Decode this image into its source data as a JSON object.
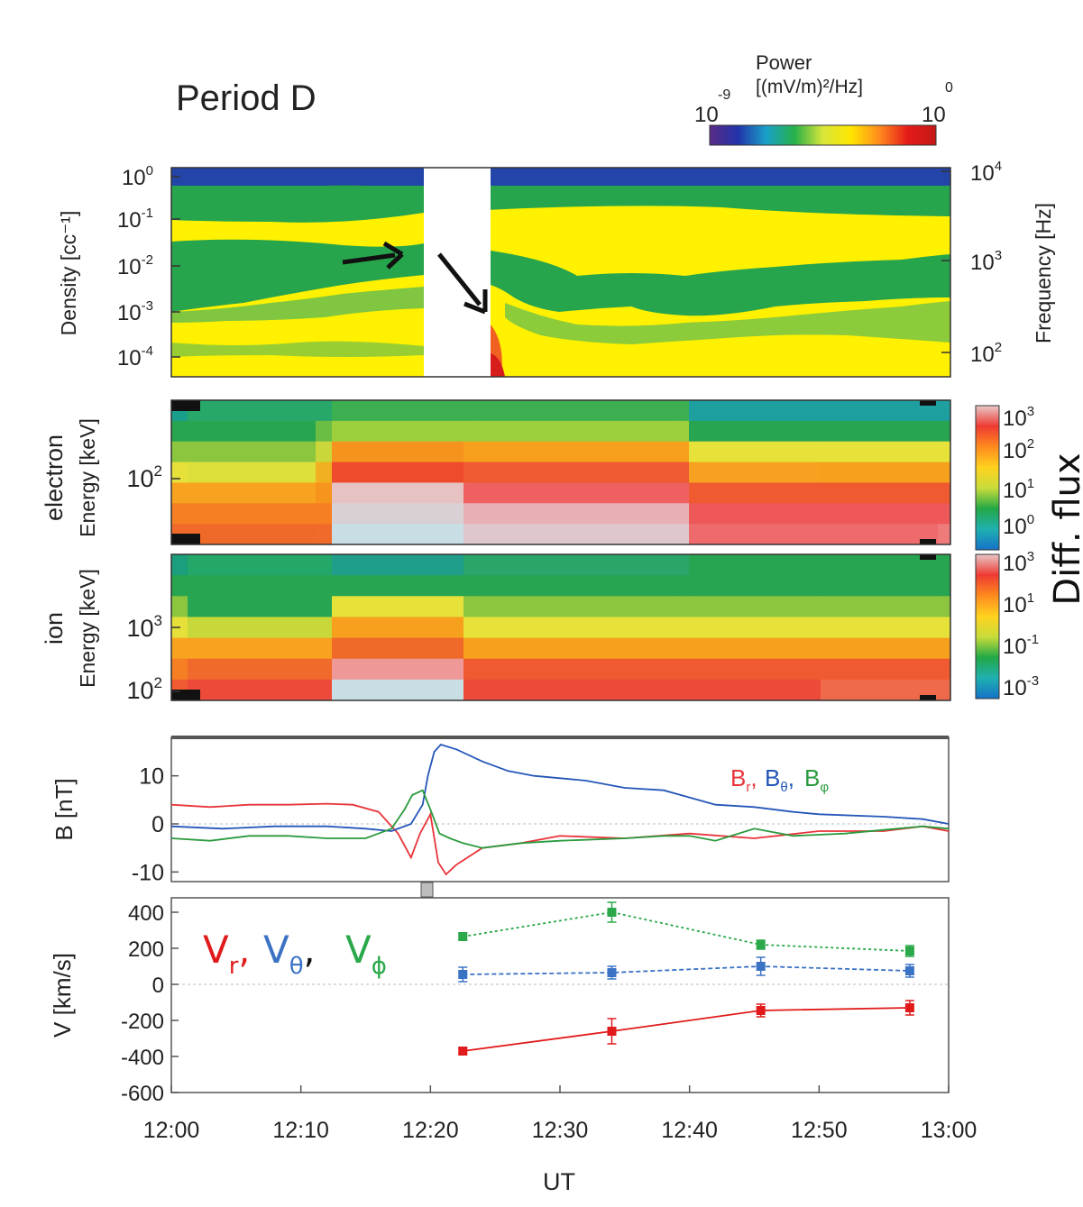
{
  "header": {
    "title": "Period D"
  },
  "power_colorbar": {
    "label_line1": "Power",
    "label_line2": "[(mV/m)²/Hz]",
    "min_base": "10",
    "min_exp": "-9",
    "max_base": "10",
    "max_exp": "0",
    "stops": [
      "#5a2a86",
      "#2233aa",
      "#1aa0c8",
      "#27b04a",
      "#d8e63a",
      "#ffe600",
      "#ff8a1e",
      "#e51a1a",
      "#c41818"
    ]
  },
  "flux_colorbars": {
    "label": "Diff. flux",
    "electron_ticks": [
      {
        "b": "10",
        "e": "3"
      },
      {
        "b": "10",
        "e": "2"
      },
      {
        "b": "10",
        "e": "1"
      },
      {
        "b": "10",
        "e": "0"
      }
    ],
    "ion_ticks": [
      {
        "b": "10",
        "e": "3"
      },
      {
        "b": "10",
        "e": "1"
      },
      {
        "b": "10",
        "e": "-1"
      },
      {
        "b": "10",
        "e": "-3"
      }
    ],
    "stops": [
      "#1672c8",
      "#1fb0b0",
      "#23a846",
      "#c8dc3a",
      "#ffd21e",
      "#ff8a1e",
      "#ee3a32",
      "#e8c8c8"
    ]
  },
  "panels": {
    "wave": {
      "left_label": "Density [cc⁻¹]",
      "left_ticks": [
        {
          "b": "10",
          "e": "0"
        },
        {
          "b": "10",
          "e": "-1"
        },
        {
          "b": "10",
          "e": "-2"
        },
        {
          "b": "10",
          "e": "-3"
        },
        {
          "b": "10",
          "e": "-4"
        }
      ],
      "right_label": "Frequency [Hz]",
      "right_ticks": [
        {
          "b": "10",
          "e": "4"
        },
        {
          "b": "10",
          "e": "3"
        },
        {
          "b": "10",
          "e": "2"
        }
      ]
    },
    "electron": {
      "label_line1": "electron",
      "label_line2": "Energy [keV]",
      "ticks": [
        {
          "b": "10",
          "e": "2"
        }
      ]
    },
    "ion": {
      "label_line1": "ion",
      "label_line2": "Energy [keV]",
      "ticks": [
        {
          "b": "10",
          "e": "3"
        },
        {
          "b": "10",
          "e": "2"
        }
      ]
    }
  },
  "chart_data": [
    {
      "type": "heatmap",
      "name": "wave power spectrogram",
      "x_range": [
        "12:00",
        "13:00"
      ],
      "y_scale": "log",
      "data_gap": [
        "12:19",
        "12:24"
      ]
    },
    {
      "type": "heatmap",
      "name": "electron differential flux",
      "x_range": [
        "12:00",
        "13:00"
      ],
      "flux_enhancement_start": "12:11",
      "flux_enhancement_end": "12:39"
    },
    {
      "type": "heatmap",
      "name": "ion differential flux",
      "x_range": [
        "12:00",
        "13:00"
      ],
      "flux_enhancement_start": "12:11",
      "flux_enhancement_end": "12:22"
    },
    {
      "type": "line",
      "ylabel": "B [nT]",
      "ylim": [
        -12,
        18
      ],
      "yticks": [
        {
          "v": 10,
          "label": "10"
        },
        {
          "v": 0,
          "label": "0"
        },
        {
          "v": -10,
          "label": "-10"
        }
      ],
      "x_range": [
        0,
        60
      ],
      "series": [
        {
          "name": "Br",
          "base": "B",
          "sub": "r",
          "color": "#e8343a",
          "x": [
            0,
            3,
            6,
            9,
            12,
            14,
            16,
            17.5,
            18.5,
            19.2,
            20,
            20.6,
            21.2,
            22,
            24,
            27,
            30,
            35,
            40,
            45,
            50,
            55,
            58,
            60
          ],
          "y": [
            4,
            3.5,
            4,
            4,
            4.2,
            4,
            2.5,
            -2,
            -7,
            -2,
            2,
            -8,
            -10.5,
            -8.5,
            -5,
            -4,
            -2.5,
            -3,
            -2,
            -3,
            -1.5,
            -1.5,
            -0.5,
            -1.5
          ]
        },
        {
          "name": "Bθ",
          "base": "B",
          "sub": "θ",
          "color": "#2456b8",
          "x": [
            0,
            4,
            8,
            12,
            15,
            17,
            18.5,
            19.4,
            19.8,
            20.3,
            20.8,
            22,
            24,
            26,
            28,
            30,
            32,
            35,
            38,
            40,
            42,
            45,
            48,
            50,
            55,
            58,
            60
          ],
          "y": [
            -0.5,
            -1,
            -0.5,
            -0.5,
            -1,
            -1.5,
            0,
            4,
            10,
            15,
            16.5,
            15.5,
            13,
            11,
            10,
            9.5,
            9,
            7.5,
            7,
            5.5,
            4,
            3.5,
            2.5,
            2,
            1.5,
            1,
            0
          ]
        },
        {
          "name": "Bφ",
          "base": "B",
          "sub": "φ",
          "color": "#2a9a3e",
          "x": [
            0,
            3,
            6,
            9,
            12,
            15,
            17,
            18,
            18.6,
            19.4,
            20,
            20.7,
            21.5,
            22.5,
            24,
            27,
            30,
            35,
            38,
            40,
            42,
            45,
            48,
            52,
            56,
            58,
            60
          ],
          "y": [
            -3,
            -3.5,
            -2.5,
            -2.5,
            -3,
            -3,
            -1,
            3,
            6,
            7,
            3,
            -2,
            -3,
            -4,
            -5,
            -4,
            -3.5,
            -3,
            -2.5,
            -2.5,
            -3.5,
            -1,
            -2.5,
            -2,
            -1,
            -0.5,
            -1
          ]
        }
      ]
    },
    {
      "type": "line",
      "ylabel": "V [km/s]",
      "ylim": [
        -600,
        480
      ],
      "yticks": [
        {
          "v": 400,
          "label": "400"
        },
        {
          "v": 200,
          "label": "200"
        },
        {
          "v": 0,
          "label": "0"
        },
        {
          "v": -200,
          "label": "-200"
        },
        {
          "v": -400,
          "label": "-400"
        },
        {
          "v": -600,
          "label": "-600"
        }
      ],
      "xlabel": "UT",
      "x_range": [
        0,
        60
      ],
      "xticks": [
        {
          "v": 0,
          "label": "12:00"
        },
        {
          "v": 10,
          "label": "12:10"
        },
        {
          "v": 20,
          "label": "12:20"
        },
        {
          "v": 30,
          "label": "12:30"
        },
        {
          "v": 40,
          "label": "12:40"
        },
        {
          "v": 50,
          "label": "12:50"
        },
        {
          "v": 60,
          "label": "13:00"
        }
      ],
      "series": [
        {
          "name": "Vr",
          "base": "V",
          "sub": "r",
          "color": "#e11b1b",
          "x": [
            22.5,
            34,
            45.5,
            57
          ],
          "y": [
            -370,
            -260,
            -145,
            -130
          ],
          "err": [
            15,
            70,
            35,
            40
          ]
        },
        {
          "name": "Vθ",
          "base": "V",
          "sub": "θ",
          "color": "#3a72c4",
          "x": [
            22.5,
            34,
            45.5,
            57
          ],
          "y": [
            55,
            65,
            100,
            75
          ],
          "err": [
            40,
            35,
            50,
            35
          ]
        },
        {
          "name": "Vφ",
          "base": "V",
          "sub": "ϕ",
          "color": "#2aa84a",
          "x": [
            22.5,
            34,
            45.5,
            57
          ],
          "y": [
            265,
            400,
            220,
            185
          ],
          "err": [
            20,
            55,
            25,
            30
          ]
        }
      ]
    }
  ]
}
